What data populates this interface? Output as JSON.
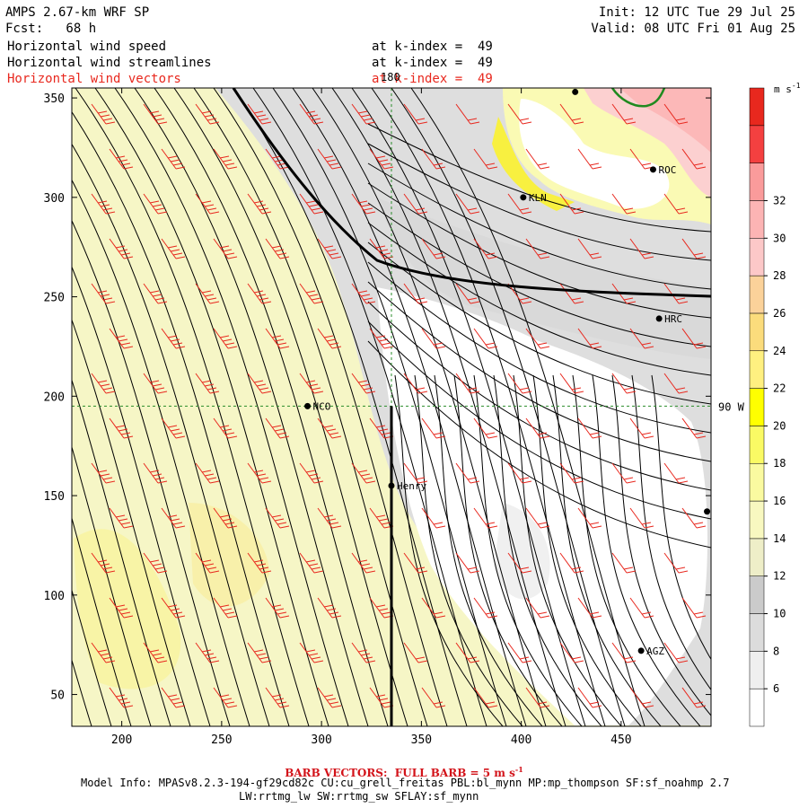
{
  "header": {
    "model_title": "AMPS 2.67-km WRF SP",
    "forecast": "Fcst:   68 h",
    "init": "Init: 12 UTC Tue 29 Jul 25",
    "valid": "Valid: 08 UTC Fri 01 Aug 25"
  },
  "fields": [
    {
      "label": "Horizontal wind speed",
      "level": "at k-index =  49",
      "color": "#000000"
    },
    {
      "label": "Horizontal wind streamlines",
      "level": "at k-index =  49",
      "color": "#000000"
    },
    {
      "label": "Horizontal wind vectors",
      "level": "at k-index =  49",
      "color": "#e8281e"
    }
  ],
  "footer": {
    "barb_note": "BARB VECTORS:  FULL BARB = 5 m s",
    "barb_exp": "-1",
    "model_info": "Model Info: MPASv8.2.3-194-gf29cd82c CU:cu_grell_freitas PBL:bl_mynn MP:mp_thompson SF:sf_noahmp 2.7",
    "model_info_2": "LW:rrtmg_lw SW:rrtmg_sw SFLAY:sf_mynn"
  },
  "map_labels": {
    "meridian": "180",
    "parallel": "90 W"
  },
  "chart_data": {
    "type": "heatmap",
    "title": "",
    "xlabel": "",
    "ylabel": "",
    "xlim": [
      175,
      495
    ],
    "ylim": [
      34,
      355
    ],
    "x_ticks": [
      200,
      250,
      300,
      350,
      400,
      450
    ],
    "y_ticks": [
      50,
      100,
      150,
      200,
      250,
      300,
      350
    ],
    "colorbar": {
      "unit": "m s",
      "unit_exp": "-1",
      "levels": [
        5,
        7,
        9,
        11,
        13,
        15,
        17,
        19,
        21,
        23,
        25,
        27,
        29,
        31,
        33,
        35
      ],
      "colors": [
        "#ffffff",
        "#efefef",
        "#dcdcdc",
        "#cbcbcb",
        "#eeeec8",
        "#f8f8c0",
        "#fafaa0",
        "#fafa64",
        "#ffff00",
        "#fff080",
        "#fbdc7c",
        "#fbd29a",
        "#fcc8c8",
        "#fcb4b4",
        "#fa9b9b",
        "#f44040",
        "#e8281e"
      ],
      "tick_labels": [
        6,
        8,
        10,
        12,
        14,
        16,
        18,
        20,
        22,
        24,
        26,
        28,
        30,
        32
      ]
    },
    "stations": [
      {
        "name": "KLN",
        "x": 401,
        "y": 300
      },
      {
        "name": "ROC",
        "x": 466,
        "y": 314
      },
      {
        "name": "HRC",
        "x": 469,
        "y": 239
      },
      {
        "name": "NCO",
        "x": 293,
        "y": 195
      },
      {
        "name": "Henry",
        "x": 335,
        "y": 155
      },
      {
        "name": "AGZ",
        "x": 460,
        "y": 72
      },
      {
        "name": "",
        "x": 493,
        "y": 142
      },
      {
        "name": "",
        "x": 427,
        "y": 353
      }
    ],
    "grid_x": 335,
    "grid_y": 195,
    "legend": "none"
  }
}
